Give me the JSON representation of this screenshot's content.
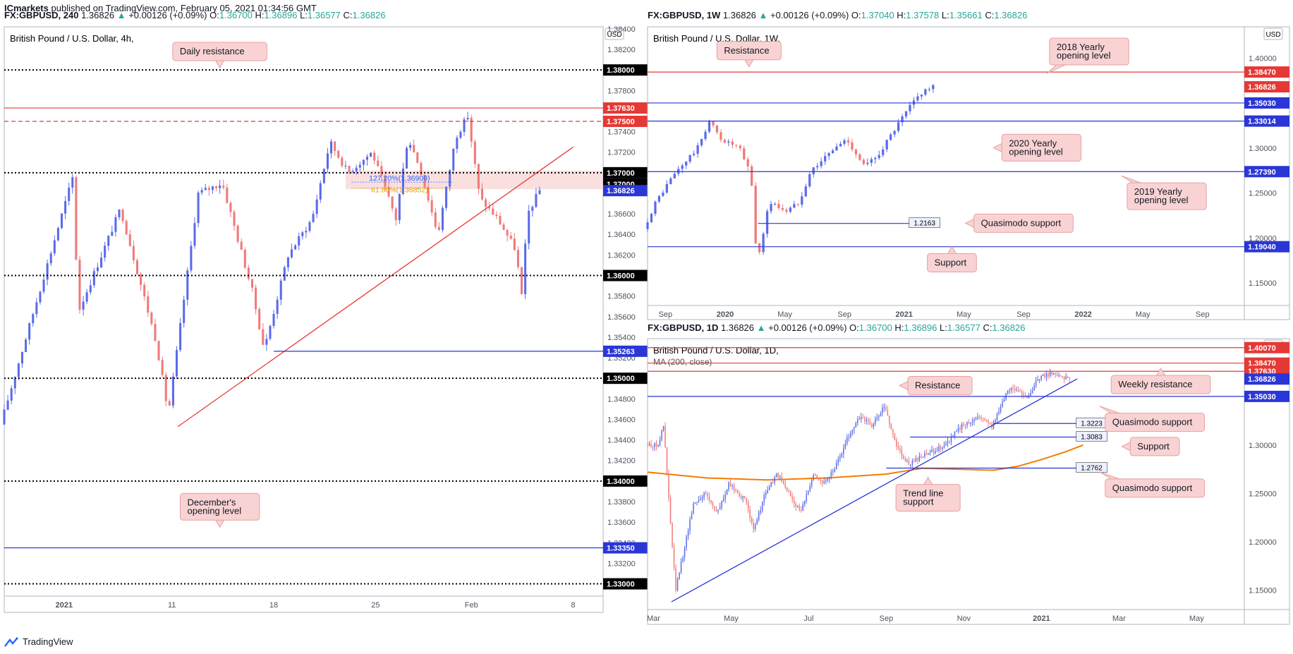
{
  "publisher": {
    "name": "ICmarkets",
    "text": "published on TradingView.com, February 05, 2021 01:34:56 GMT"
  },
  "footer": {
    "logo_text": "TradingView"
  },
  "colors": {
    "up": "#5b6be8",
    "down": "#ef7a7a",
    "resistance": "#e53935",
    "support": "#2a36d6",
    "level_black": "#000000",
    "ma": "#f57c00",
    "fib": "#2962ff",
    "fib2": "#e5a100",
    "callout_bg": "#f9d3d3",
    "callout_border": "#e7a0a0"
  },
  "chart_data": [
    {
      "id": "h4",
      "type": "candlestick",
      "symbol": "FX:GBPUSD",
      "timeframe": "240",
      "header": {
        "symbol": "FX:GBPUSD, 240",
        "last": "1.36826",
        "change": "+0.00126 (+0.09%)",
        "O": "1.36700",
        "H": "1.36896",
        "L": "1.36577",
        "C": "1.36826"
      },
      "title": "British Pound / U.S. Dollar, 4h,",
      "currency": "USD",
      "ylim": [
        1.3288,
        1.3842
      ],
      "xlim": [
        0,
        100
      ],
      "yticks": [
        "1.38400",
        "1.38200",
        "1.37800",
        "1.37400",
        "1.37200",
        "1.36600",
        "1.36400",
        "1.36200",
        "1.35800",
        "1.35600",
        "1.35400",
        "1.35200",
        "1.34800",
        "1.34600",
        "1.34400",
        "1.34200",
        "1.33800",
        "1.33600",
        "1.33400",
        "1.33200"
      ],
      "xticks": [
        {
          "label": "2021",
          "x": 10
        },
        {
          "label": "11",
          "x": 28
        },
        {
          "label": "18",
          "x": 45
        },
        {
          "label": "25",
          "x": 62
        },
        {
          "label": "Feb",
          "x": 78
        },
        {
          "label": "8",
          "x": 95
        }
      ],
      "levels": [
        {
          "value": 1.38,
          "label": "1.38000",
          "style": "dotted",
          "color": "#000000"
        },
        {
          "value": 1.3763,
          "label": "1.37630",
          "style": "solid",
          "color": "#e53935"
        },
        {
          "value": 1.375,
          "label": "1.37500",
          "style": "dashed",
          "color": "#e53935"
        },
        {
          "value": 1.37,
          "label": "1.37000",
          "style": "dotted",
          "color": "#000000"
        },
        {
          "value": 1.36,
          "label": "1.36000",
          "style": "dotted",
          "color": "#000000"
        },
        {
          "value": 1.35263,
          "label": "1.35263",
          "style": "solid",
          "color": "#2a36d6",
          "x_from": 45
        },
        {
          "value": 1.35,
          "label": "1.35000",
          "style": "dotted",
          "color": "#000000"
        },
        {
          "value": 1.34,
          "label": "1.34000",
          "style": "dotted",
          "color": "#000000"
        },
        {
          "value": 1.3335,
          "label": "1.33350",
          "style": "solid",
          "color": "#2a36d6"
        },
        {
          "value": 1.33,
          "label": "1.33000",
          "style": "dotted",
          "color": "#000000"
        }
      ],
      "price_tags": [
        {
          "value": 1.37,
          "label": "1.37000",
          "color": "#000000"
        },
        {
          "value": 1.36826,
          "label": "1.36826",
          "color": "#2a36d6"
        }
      ],
      "zone": {
        "from": 1.3684,
        "to": 1.3702
      },
      "fib": [
        {
          "label": "127.20%(1.36909)",
          "value": 1.36909,
          "color": "#2962ff"
        },
        {
          "label": "61.80%(1.36852)",
          "value": 1.36852,
          "color": "#e5a100"
        }
      ],
      "trendline": {
        "x1": 29,
        "y1": 1.3453,
        "x2": 95,
        "y2": 1.3725
      },
      "callouts": [
        {
          "text": "Daily resistance",
          "x": 36,
          "y": 1.3818,
          "pointer": "down"
        },
        {
          "text": "December's opening level",
          "x": 36,
          "y": 1.3375,
          "pointer": "down"
        }
      ],
      "candles": {
        "start": 1.3455,
        "end": 1.36826,
        "n": 150,
        "anchors": [
          [
            0,
            1.3455
          ],
          [
            8,
            1.3615
          ],
          [
            12,
            1.3695
          ],
          [
            13,
            1.3565
          ],
          [
            20,
            1.3665
          ],
          [
            26,
            1.3535
          ],
          [
            28,
            1.3465
          ],
          [
            33,
            1.368
          ],
          [
            37,
            1.369
          ],
          [
            42,
            1.3585
          ],
          [
            44,
            1.3528
          ],
          [
            48,
            1.362
          ],
          [
            52,
            1.3655
          ],
          [
            55,
            1.373
          ],
          [
            58,
            1.37
          ],
          [
            62,
            1.372
          ],
          [
            66,
            1.3655
          ],
          [
            68,
            1.3735
          ],
          [
            70,
            1.3705
          ],
          [
            73,
            1.364
          ],
          [
            76,
            1.3735
          ],
          [
            78,
            1.3755
          ],
          [
            80,
            1.3675
          ],
          [
            83,
            1.3655
          ],
          [
            86,
            1.3625
          ],
          [
            87,
            1.358
          ],
          [
            88,
            1.366
          ],
          [
            90,
            1.3683
          ]
        ],
        "x_end": 90
      }
    },
    {
      "id": "w1",
      "type": "candlestick",
      "symbol": "FX:GBPUSD",
      "timeframe": "1W",
      "header": {
        "symbol": "FX:GBPUSD, 1W",
        "last": "1.36826",
        "change": "+0.00126 (+0.09%)",
        "O": "1.37040",
        "H": "1.37578",
        "L": "1.35661",
        "C": "1.36826"
      },
      "title": "British Pound / U.S. Dollar, 1W,",
      "currency": "USD",
      "ylim": [
        1.125,
        1.435
      ],
      "xlim": [
        0,
        100
      ],
      "yticks": [
        "1.40000",
        "1.35000",
        "1.30000",
        "1.25000",
        "1.20000",
        "1.15000"
      ],
      "xticks": [
        {
          "label": "Sep",
          "x": 3
        },
        {
          "label": "2020",
          "x": 13
        },
        {
          "label": "May",
          "x": 23
        },
        {
          "label": "Sep",
          "x": 33
        },
        {
          "label": "2021",
          "x": 43
        },
        {
          "label": "May",
          "x": 53
        },
        {
          "label": "Sep",
          "x": 63
        },
        {
          "label": "2022",
          "x": 73
        },
        {
          "label": "May",
          "x": 83
        },
        {
          "label": "Sep",
          "x": 93
        }
      ],
      "levels": [
        {
          "value": 1.3847,
          "label": "1.38470",
          "style": "solid",
          "color": "#e53935"
        },
        {
          "value": 1.3503,
          "label": "1.35030",
          "style": "solid",
          "color": "#2a36d6"
        },
        {
          "value": 1.33014,
          "label": "1.33014",
          "style": "solid",
          "color": "#2a36d6"
        },
        {
          "value": 1.2739,
          "label": "1.27390",
          "style": "solid",
          "color": "#2a36d6"
        },
        {
          "value": 1.1904,
          "label": "1.19040",
          "style": "solid",
          "color": "#2a36d6"
        },
        {
          "value": 1.2163,
          "label": "1.2163",
          "style": "solid",
          "color": "#2a36d6",
          "x_from": 18.5,
          "x_to": 49,
          "inline_tag": true
        }
      ],
      "price_tags": [
        {
          "value": 1.36826,
          "label": "1.36826",
          "color": "#e53935"
        }
      ],
      "callouts": [
        {
          "text": "Resistance",
          "x": 17,
          "y": 1.4085,
          "pointer": "down"
        },
        {
          "text": "2018 Yearly opening level",
          "x": 74,
          "y": 1.4075,
          "pointer": "downleft"
        },
        {
          "text": "2020 Yearly opening level",
          "x": 66,
          "y": 1.3005,
          "pointer": "left"
        },
        {
          "text": "2019 Yearly opening level",
          "x": 87,
          "y": 1.2465,
          "pointer": "upleft"
        },
        {
          "text": "Quasimodo support",
          "x": 63,
          "y": 1.2165,
          "pointer": "left"
        },
        {
          "text": "Support",
          "x": 51,
          "y": 1.1725,
          "pointer": "up"
        }
      ],
      "candles": {
        "start": 1.21,
        "end": 1.36826,
        "n": 75,
        "anchors": [
          [
            0,
            1.21
          ],
          [
            2,
            1.24
          ],
          [
            5,
            1.27
          ],
          [
            9,
            1.3
          ],
          [
            11,
            1.33
          ],
          [
            13,
            1.31
          ],
          [
            16,
            1.3
          ],
          [
            18,
            1.27
          ],
          [
            19,
            1.17
          ],
          [
            21,
            1.24
          ],
          [
            24,
            1.23
          ],
          [
            26,
            1.24
          ],
          [
            28,
            1.275
          ],
          [
            32,
            1.3
          ],
          [
            34,
            1.31
          ],
          [
            37,
            1.28
          ],
          [
            39,
            1.29
          ],
          [
            43,
            1.33
          ],
          [
            45,
            1.35
          ],
          [
            47,
            1.365
          ],
          [
            48.5,
            1.3683
          ]
        ],
        "x_end": 48.5
      }
    },
    {
      "id": "d1",
      "type": "candlestick",
      "symbol": "FX:GBPUSD",
      "timeframe": "1D",
      "header": {
        "symbol": "FX:GBPUSD, 1D",
        "last": "1.36826",
        "change": "+0.00126 (+0.09%)",
        "O": "1.36700",
        "H": "1.36896",
        "L": "1.36577",
        "C": "1.36826"
      },
      "title": "British Pound / U.S. Dollar, 1D,",
      "indicator": "MA (200, close)",
      "currency": "USD",
      "ylim": [
        1.13,
        1.41
      ],
      "xlim": [
        0,
        100
      ],
      "yticks": [
        "1.35000",
        "1.30000",
        "1.25000",
        "1.20000",
        "1.15000"
      ],
      "xticks": [
        {
          "label": "Mar",
          "x": 1
        },
        {
          "label": "May",
          "x": 14
        },
        {
          "label": "Jul",
          "x": 27
        },
        {
          "label": "Sep",
          "x": 40
        },
        {
          "label": "Nov",
          "x": 53
        },
        {
          "label": "2021",
          "x": 66
        },
        {
          "label": "Mar",
          "x": 79
        },
        {
          "label": "May",
          "x": 92
        }
      ],
      "levels": [
        {
          "value": 1.4007,
          "label": "1.40070",
          "style": "solid",
          "color": "#e53935"
        },
        {
          "value": 1.3847,
          "label": "1.38470",
          "style": "solid",
          "color": "#e53935"
        },
        {
          "value": 1.3763,
          "label": "1.37630",
          "style": "solid",
          "color": "#e53935"
        },
        {
          "value": 1.3503,
          "label": "1.35030",
          "style": "solid",
          "color": "#2a36d6"
        },
        {
          "value": 1.3223,
          "label": "1.3223",
          "style": "solid",
          "color": "#2a36d6",
          "x_from": 58,
          "x_to": 77,
          "inline_tag": true
        },
        {
          "value": 1.3083,
          "label": "1.3083",
          "style": "solid",
          "color": "#2a36d6",
          "x_from": 44,
          "x_to": 77,
          "inline_tag": true
        },
        {
          "value": 1.2762,
          "label": "1.2762",
          "style": "solid",
          "color": "#2a36d6",
          "x_from": 40,
          "x_to": 77,
          "inline_tag": true
        }
      ],
      "price_tags": [
        {
          "value": 1.36826,
          "label": "1.36826",
          "color": "#2a36d6"
        }
      ],
      "trendline": {
        "x1": 4,
        "y1": 1.138,
        "x2": 72,
        "y2": 1.3685
      },
      "ma": [
        [
          0,
          1.272
        ],
        [
          10,
          1.266
        ],
        [
          20,
          1.264
        ],
        [
          30,
          1.266
        ],
        [
          40,
          1.27
        ],
        [
          46,
          1.276
        ],
        [
          52,
          1.275
        ],
        [
          58,
          1.274
        ],
        [
          62,
          1.278
        ],
        [
          66,
          1.285
        ],
        [
          70,
          1.293
        ],
        [
          73,
          1.3
        ]
      ],
      "callouts": [
        {
          "text": "Resistance",
          "x": 49,
          "y": 1.3615,
          "pointer": "left"
        },
        {
          "text": "Weekly resistance",
          "x": 86,
          "y": 1.3625,
          "pointer": "up"
        },
        {
          "text": "Quasimodo support",
          "x": 85,
          "y": 1.3235,
          "pointer": "upleft"
        },
        {
          "text": "Support",
          "x": 85,
          "y": 1.2985,
          "pointer": "left"
        },
        {
          "text": "Trend line support",
          "x": 47,
          "y": 1.2455,
          "pointer": "up"
        },
        {
          "text": "Quasimodo support",
          "x": 85,
          "y": 1.2555,
          "pointer": "upleft"
        }
      ],
      "candles": {
        "start": 1.29,
        "end": 1.36826,
        "n": 240,
        "anchors": [
          [
            0,
            1.3
          ],
          [
            2,
            1.3
          ],
          [
            3,
            1.32
          ],
          [
            4,
            1.23
          ],
          [
            5,
            1.15
          ],
          [
            6,
            1.18
          ],
          [
            8,
            1.24
          ],
          [
            10,
            1.25
          ],
          [
            12,
            1.23
          ],
          [
            14,
            1.26
          ],
          [
            17,
            1.24
          ],
          [
            18,
            1.21
          ],
          [
            20,
            1.25
          ],
          [
            22,
            1.27
          ],
          [
            24,
            1.25
          ],
          [
            26,
            1.23
          ],
          [
            28,
            1.27
          ],
          [
            30,
            1.26
          ],
          [
            32,
            1.28
          ],
          [
            34,
            1.31
          ],
          [
            36,
            1.33
          ],
          [
            38,
            1.32
          ],
          [
            40,
            1.34
          ],
          [
            42,
            1.3
          ],
          [
            44,
            1.28
          ],
          [
            47,
            1.29
          ],
          [
            50,
            1.3
          ],
          [
            53,
            1.32
          ],
          [
            56,
            1.33
          ],
          [
            58,
            1.32
          ],
          [
            61,
            1.36
          ],
          [
            64,
            1.35
          ],
          [
            66,
            1.37
          ],
          [
            68,
            1.375
          ],
          [
            71,
            1.3683
          ]
        ],
        "x_end": 71
      }
    }
  ]
}
